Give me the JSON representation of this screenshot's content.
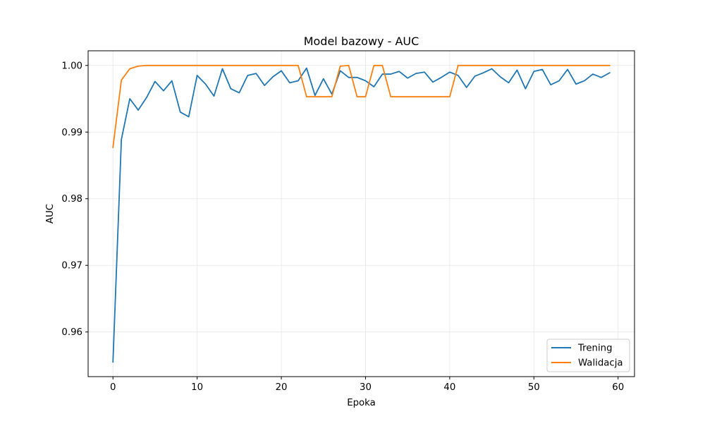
{
  "chart_data": {
    "type": "line",
    "title": "Model bazowy - AUC",
    "xlabel": "Epoka",
    "ylabel": "AUC",
    "xlim": [
      -2.95,
      61.95
    ],
    "ylim": [
      0.9533,
      1.0022
    ],
    "xticks": [
      0,
      10,
      20,
      30,
      40,
      50,
      60
    ],
    "xtick_labels": [
      "0",
      "10",
      "20",
      "30",
      "40",
      "50",
      "60"
    ],
    "yticks": [
      0.96,
      0.97,
      0.98,
      0.99,
      1.0
    ],
    "ytick_labels": [
      "0.96",
      "0.97",
      "0.98",
      "0.99",
      "1.00"
    ],
    "grid": true,
    "legend_position": "lower-right",
    "x": [
      0,
      1,
      2,
      3,
      4,
      5,
      6,
      7,
      8,
      9,
      10,
      11,
      12,
      13,
      14,
      15,
      16,
      17,
      18,
      19,
      20,
      21,
      22,
      23,
      24,
      25,
      26,
      27,
      28,
      29,
      30,
      31,
      32,
      33,
      34,
      35,
      36,
      37,
      38,
      39,
      40,
      41,
      42,
      43,
      44,
      45,
      46,
      47,
      48,
      49,
      50,
      51,
      52,
      53,
      54,
      55,
      56,
      57,
      58,
      59
    ],
    "series": [
      {
        "name": "Trening",
        "color": "#1f77b4",
        "values": [
          0.9555,
          0.9889,
          0.995,
          0.9933,
          0.9952,
          0.9976,
          0.9962,
          0.9977,
          0.993,
          0.9923,
          0.9985,
          0.9972,
          0.9954,
          0.9995,
          0.9965,
          0.9959,
          0.9985,
          0.9988,
          0.997,
          0.9983,
          0.9992,
          0.9974,
          0.9977,
          0.9996,
          0.9955,
          0.998,
          0.9957,
          0.9992,
          0.9982,
          0.9982,
          0.9977,
          0.9968,
          0.9987,
          0.9987,
          0.9991,
          0.9981,
          0.9988,
          0.999,
          0.9975,
          0.9982,
          0.999,
          0.9985,
          0.9967,
          0.9984,
          0.9989,
          0.9995,
          0.9983,
          0.9974,
          0.9993,
          0.9965,
          0.9991,
          0.9994,
          0.9971,
          0.9977,
          0.9994,
          0.9972,
          0.9977,
          0.9987,
          0.9982,
          0.9989
        ]
      },
      {
        "name": "Walidacja",
        "color": "#ff7f0e",
        "values": [
          0.9877,
          0.9978,
          0.9995,
          0.9999,
          1.0,
          1.0,
          1.0,
          1.0,
          1.0,
          1.0,
          1.0,
          1.0,
          1.0,
          1.0,
          1.0,
          1.0,
          1.0,
          1.0,
          1.0,
          1.0,
          1.0,
          1.0,
          1.0,
          0.9953,
          0.9953,
          0.9953,
          0.9953,
          0.9999,
          1.0,
          0.9953,
          0.9953,
          1.0,
          1.0,
          0.9953,
          0.9953,
          0.9953,
          0.9953,
          0.9953,
          0.9953,
          0.9953,
          0.9953,
          1.0,
          1.0,
          1.0,
          1.0,
          1.0,
          1.0,
          1.0,
          1.0,
          1.0,
          1.0,
          1.0,
          1.0,
          1.0,
          1.0,
          1.0,
          1.0,
          1.0,
          1.0,
          1.0
        ]
      }
    ]
  }
}
